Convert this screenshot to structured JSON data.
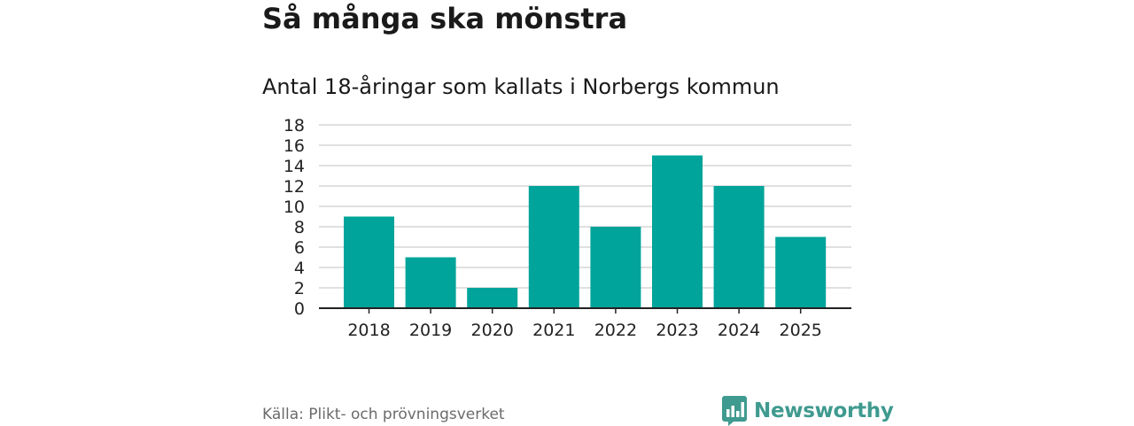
{
  "header": {
    "title": "Så många ska mönstra",
    "subtitle": "Antal 18-åringar som kallats i Norbergs kommun"
  },
  "footer": {
    "source": "Källa: Plikt- och prövningsverket",
    "brand": "Newsworthy"
  },
  "colors": {
    "bar": "#00a49a",
    "brand": "#3f9a8f",
    "grid": "#d6d6d6",
    "axis": "#222222"
  },
  "icons": {
    "brand_logo": "bar-chart-badge-icon"
  },
  "chart_data": {
    "type": "bar",
    "categories": [
      "2018",
      "2019",
      "2020",
      "2021",
      "2022",
      "2023",
      "2024",
      "2025"
    ],
    "values": [
      9,
      5,
      2,
      12,
      8,
      15,
      12,
      7
    ],
    "ylim": [
      0,
      18
    ],
    "yticks": [
      0,
      2,
      4,
      6,
      8,
      10,
      12,
      14,
      16,
      18
    ],
    "xlabel": "",
    "ylabel": "",
    "grid": true,
    "legend": "none"
  }
}
